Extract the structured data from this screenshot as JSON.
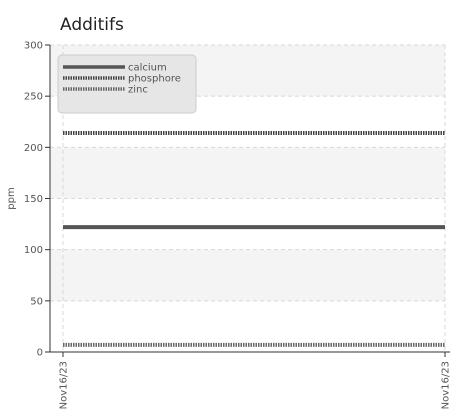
{
  "chart_data": {
    "type": "line",
    "title": "Additifs",
    "xlabel": "",
    "ylabel": "ppm",
    "ylim": [
      0,
      300
    ],
    "yticks": [
      0,
      50,
      100,
      150,
      200,
      250,
      300
    ],
    "x": [
      "Nov16/23",
      "Nov16/23"
    ],
    "grid": true,
    "legend_position": "top-left",
    "series": [
      {
        "name": "calcium",
        "values": [
          122,
          122
        ],
        "style": "solid",
        "color": "#555555"
      },
      {
        "name": "phosphore",
        "values": [
          214,
          214
        ],
        "style": "dotted",
        "color": "#444444"
      },
      {
        "name": "zinc",
        "values": [
          7,
          7
        ],
        "style": "dotted",
        "color": "#666666"
      }
    ]
  }
}
